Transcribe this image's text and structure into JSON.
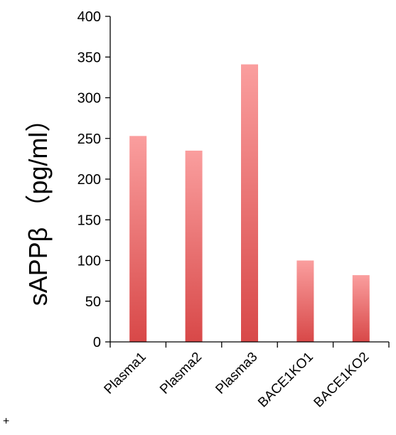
{
  "chart_data": {
    "type": "bar",
    "categories": [
      "Plasma1",
      "Plasma2",
      "Plasma3",
      "BACE1KO1",
      "BACE1KO2"
    ],
    "values": [
      253,
      235,
      341,
      100,
      82
    ],
    "title": "",
    "xlabel": "",
    "ylabel": "sAPPβ （pg/ml）",
    "ylim": [
      0,
      400
    ],
    "yticks": [
      0,
      50,
      100,
      150,
      200,
      250,
      300,
      350,
      400
    ],
    "grid": false,
    "legend": "none",
    "bar_gradient": {
      "top": "#fa9e9e",
      "bottom": "#d84848"
    },
    "axis_color": "#000000"
  },
  "edge_fragment": "+"
}
